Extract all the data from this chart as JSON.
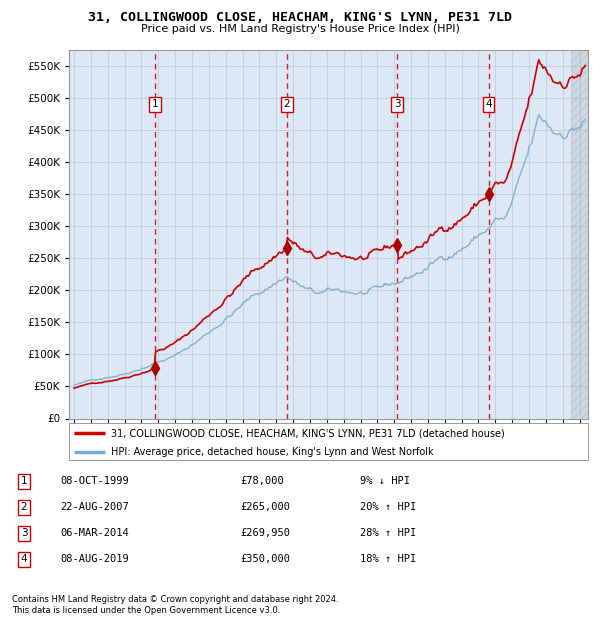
{
  "title": "31, COLLINGWOOD CLOSE, HEACHAM, KING'S LYNN, PE31 7LD",
  "subtitle": "Price paid vs. HM Land Registry's House Price Index (HPI)",
  "ylim": [
    0,
    575000
  ],
  "yticks": [
    0,
    50000,
    100000,
    150000,
    200000,
    250000,
    300000,
    350000,
    400000,
    450000,
    500000,
    550000
  ],
  "xlim_start": 1994.7,
  "xlim_end": 2025.5,
  "sale_dates": [
    1999.79,
    2007.64,
    2014.17,
    2019.6
  ],
  "sale_prices": [
    78000,
    265000,
    269950,
    350000
  ],
  "sale_labels": [
    "1",
    "2",
    "3",
    "4"
  ],
  "legend_property": "31, COLLINGWOOD CLOSE, HEACHAM, KING'S LYNN, PE31 7LD (detached house)",
  "legend_hpi": "HPI: Average price, detached house, King's Lynn and West Norfolk",
  "property_line_color": "#cc0000",
  "hpi_line_color": "#7aaad0",
  "sale_vline_color": "#cc0000",
  "plot_bg_color": "#dce8f5",
  "footer1": "Contains HM Land Registry data © Crown copyright and database right 2024.",
  "footer2": "This data is licensed under the Open Government Licence v3.0.",
  "table_entries": [
    {
      "num": "1",
      "date": "08-OCT-1999",
      "price": "£78,000",
      "hpi": "9% ↓ HPI"
    },
    {
      "num": "2",
      "date": "22-AUG-2007",
      "price": "£265,000",
      "hpi": "20% ↑ HPI"
    },
    {
      "num": "3",
      "date": "06-MAR-2014",
      "price": "£269,950",
      "hpi": "28% ↑ HPI"
    },
    {
      "num": "4",
      "date": "08-AUG-2019",
      "price": "£350,000",
      "hpi": "18% ↑ HPI"
    }
  ]
}
